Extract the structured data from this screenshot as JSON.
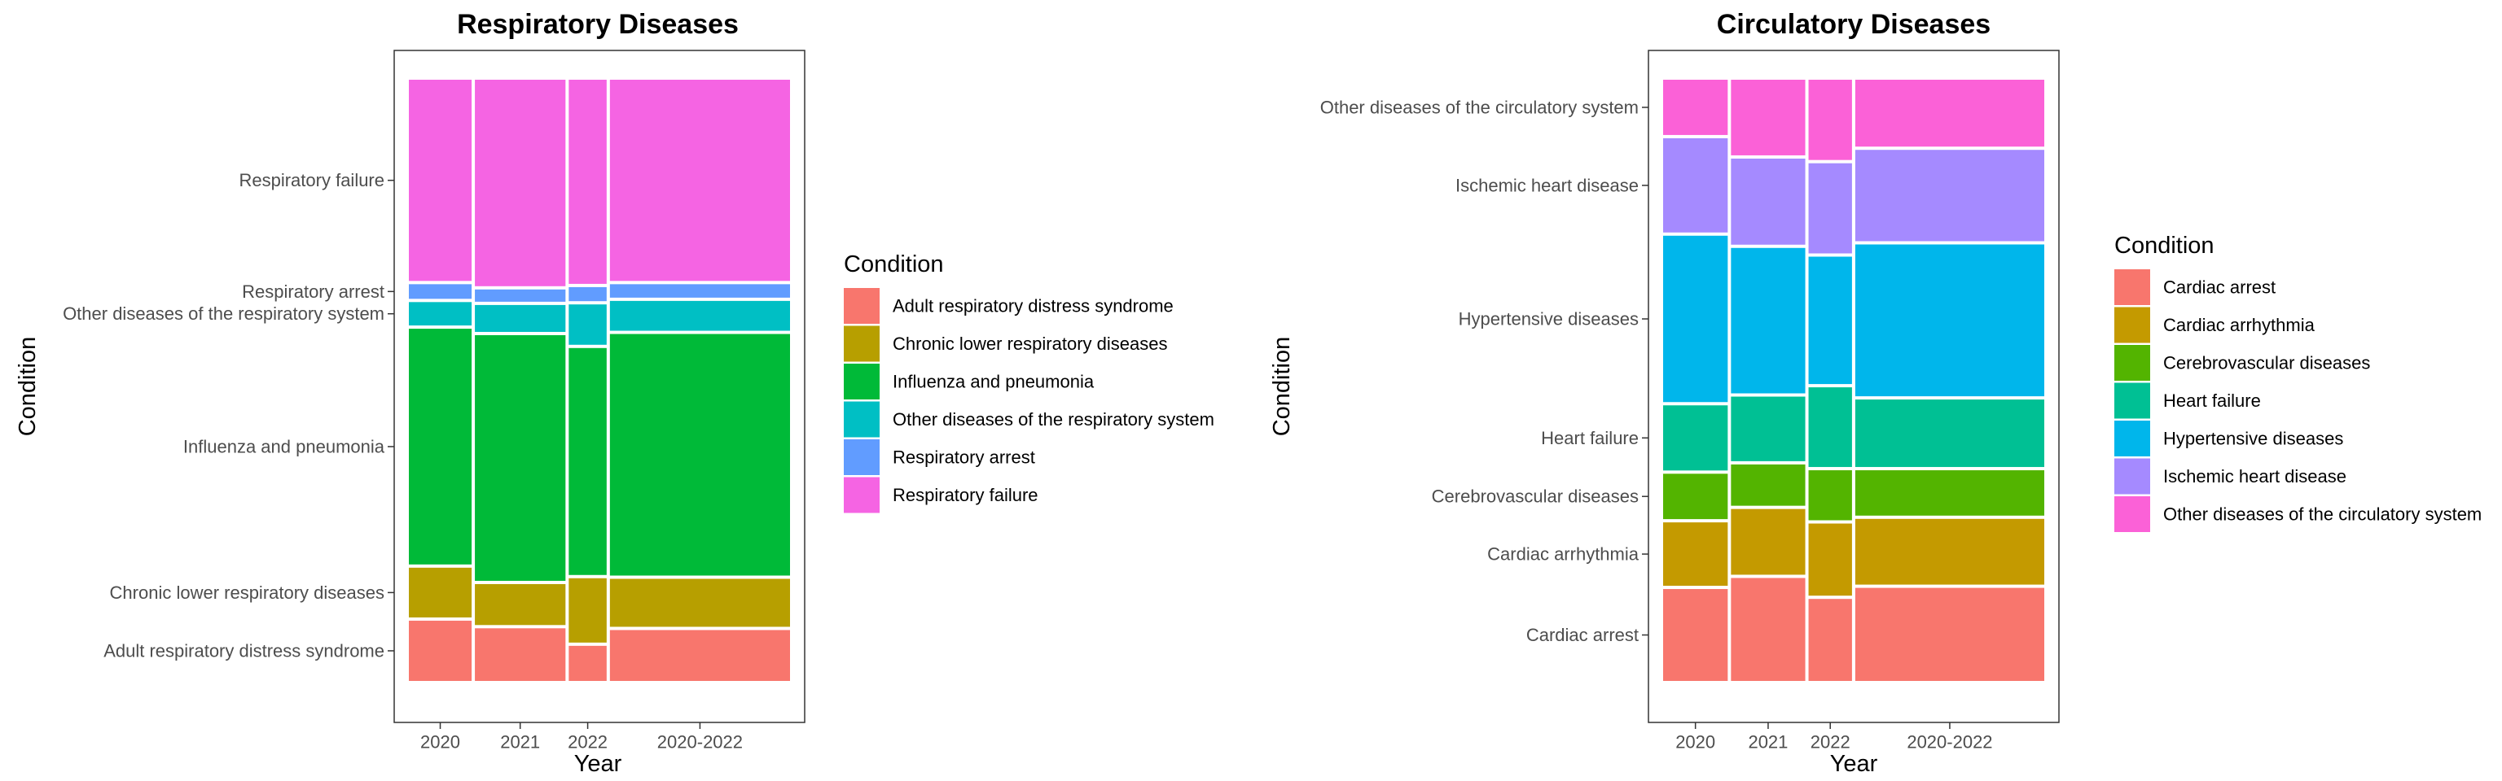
{
  "chart_data": [
    {
      "type": "mosaic",
      "title": "Respiratory Diseases",
      "xlabel": "Year",
      "ylabel": "Condition",
      "legend_title": "Condition",
      "legend_position": "right",
      "grid": false,
      "x_categories": [
        "2020",
        "2021",
        "2022",
        "2020-2022"
      ],
      "x_proportions": [
        0.169,
        0.244,
        0.102,
        0.485
      ],
      "series": [
        {
          "name": "Adult respiratory distress syndrome",
          "color": "#F8766D",
          "values": [
            0.103,
            0.09,
            0.06,
            0.087
          ]
        },
        {
          "name": "Chronic lower respiratory diseases",
          "color": "#B79F00",
          "values": [
            0.085,
            0.07,
            0.11,
            0.082
          ]
        },
        {
          "name": "Influenza and pneumonia",
          "color": "#00BA38",
          "values": [
            0.403,
            0.42,
            0.388,
            0.413
          ]
        },
        {
          "name": "Other diseases of the respiratory system",
          "color": "#00BFC4",
          "values": [
            0.04,
            0.046,
            0.069,
            0.051
          ]
        },
        {
          "name": "Respiratory arrest",
          "color": "#619CFF",
          "values": [
            0.025,
            0.021,
            0.024,
            0.023
          ]
        },
        {
          "name": "Respiratory failure",
          "color": "#F564E3",
          "values": [
            0.344,
            0.353,
            0.349,
            0.344
          ]
        }
      ],
      "y_tick_labels": [
        "Adult respiratory distress syndrome",
        "Chronic lower respiratory diseases",
        "Influenza and pneumonia",
        "Other diseases of the respiratory system",
        "Respiratory arrest",
        "Respiratory failure"
      ]
    },
    {
      "type": "mosaic",
      "title": "Circulatory Diseases",
      "xlabel": "Year",
      "ylabel": "Condition",
      "legend_title": "Condition",
      "legend_position": "right",
      "grid": false,
      "x_categories": [
        "2020",
        "2021",
        "2022",
        "2020-2022"
      ],
      "x_proportions": [
        0.174,
        0.2,
        0.117,
        0.509
      ],
      "series": [
        {
          "name": "Cardiac arrest",
          "color": "#F8766D",
          "values": [
            0.158,
            0.177,
            0.141,
            0.16
          ]
        },
        {
          "name": "Cardiac arrhythmia",
          "color": "#C49A00",
          "values": [
            0.109,
            0.113,
            0.124,
            0.113
          ]
        },
        {
          "name": "Cerebrovascular diseases",
          "color": "#53B400",
          "values": [
            0.078,
            0.071,
            0.086,
            0.078
          ]
        },
        {
          "name": "Heart failure",
          "color": "#00C094",
          "values": [
            0.112,
            0.111,
            0.137,
            0.116
          ]
        },
        {
          "name": "Hypertensive diseases",
          "color": "#00B6EB",
          "values": [
            0.286,
            0.25,
            0.219,
            0.261
          ]
        },
        {
          "name": "Ischemic heart disease",
          "color": "#A58AFF",
          "values": [
            0.162,
            0.148,
            0.155,
            0.157
          ]
        },
        {
          "name": "Other diseases of the circulatory system",
          "color": "#FB61D7",
          "values": [
            0.095,
            0.13,
            0.138,
            0.115
          ]
        }
      ],
      "y_tick_labels": [
        "Cardiac arrest",
        "Cardiac arrhythmia",
        "Cerebrovascular diseases",
        "Heart failure",
        "Hypertensive diseases",
        "Ischemic heart disease",
        "Other diseases of the circulatory system"
      ]
    }
  ]
}
